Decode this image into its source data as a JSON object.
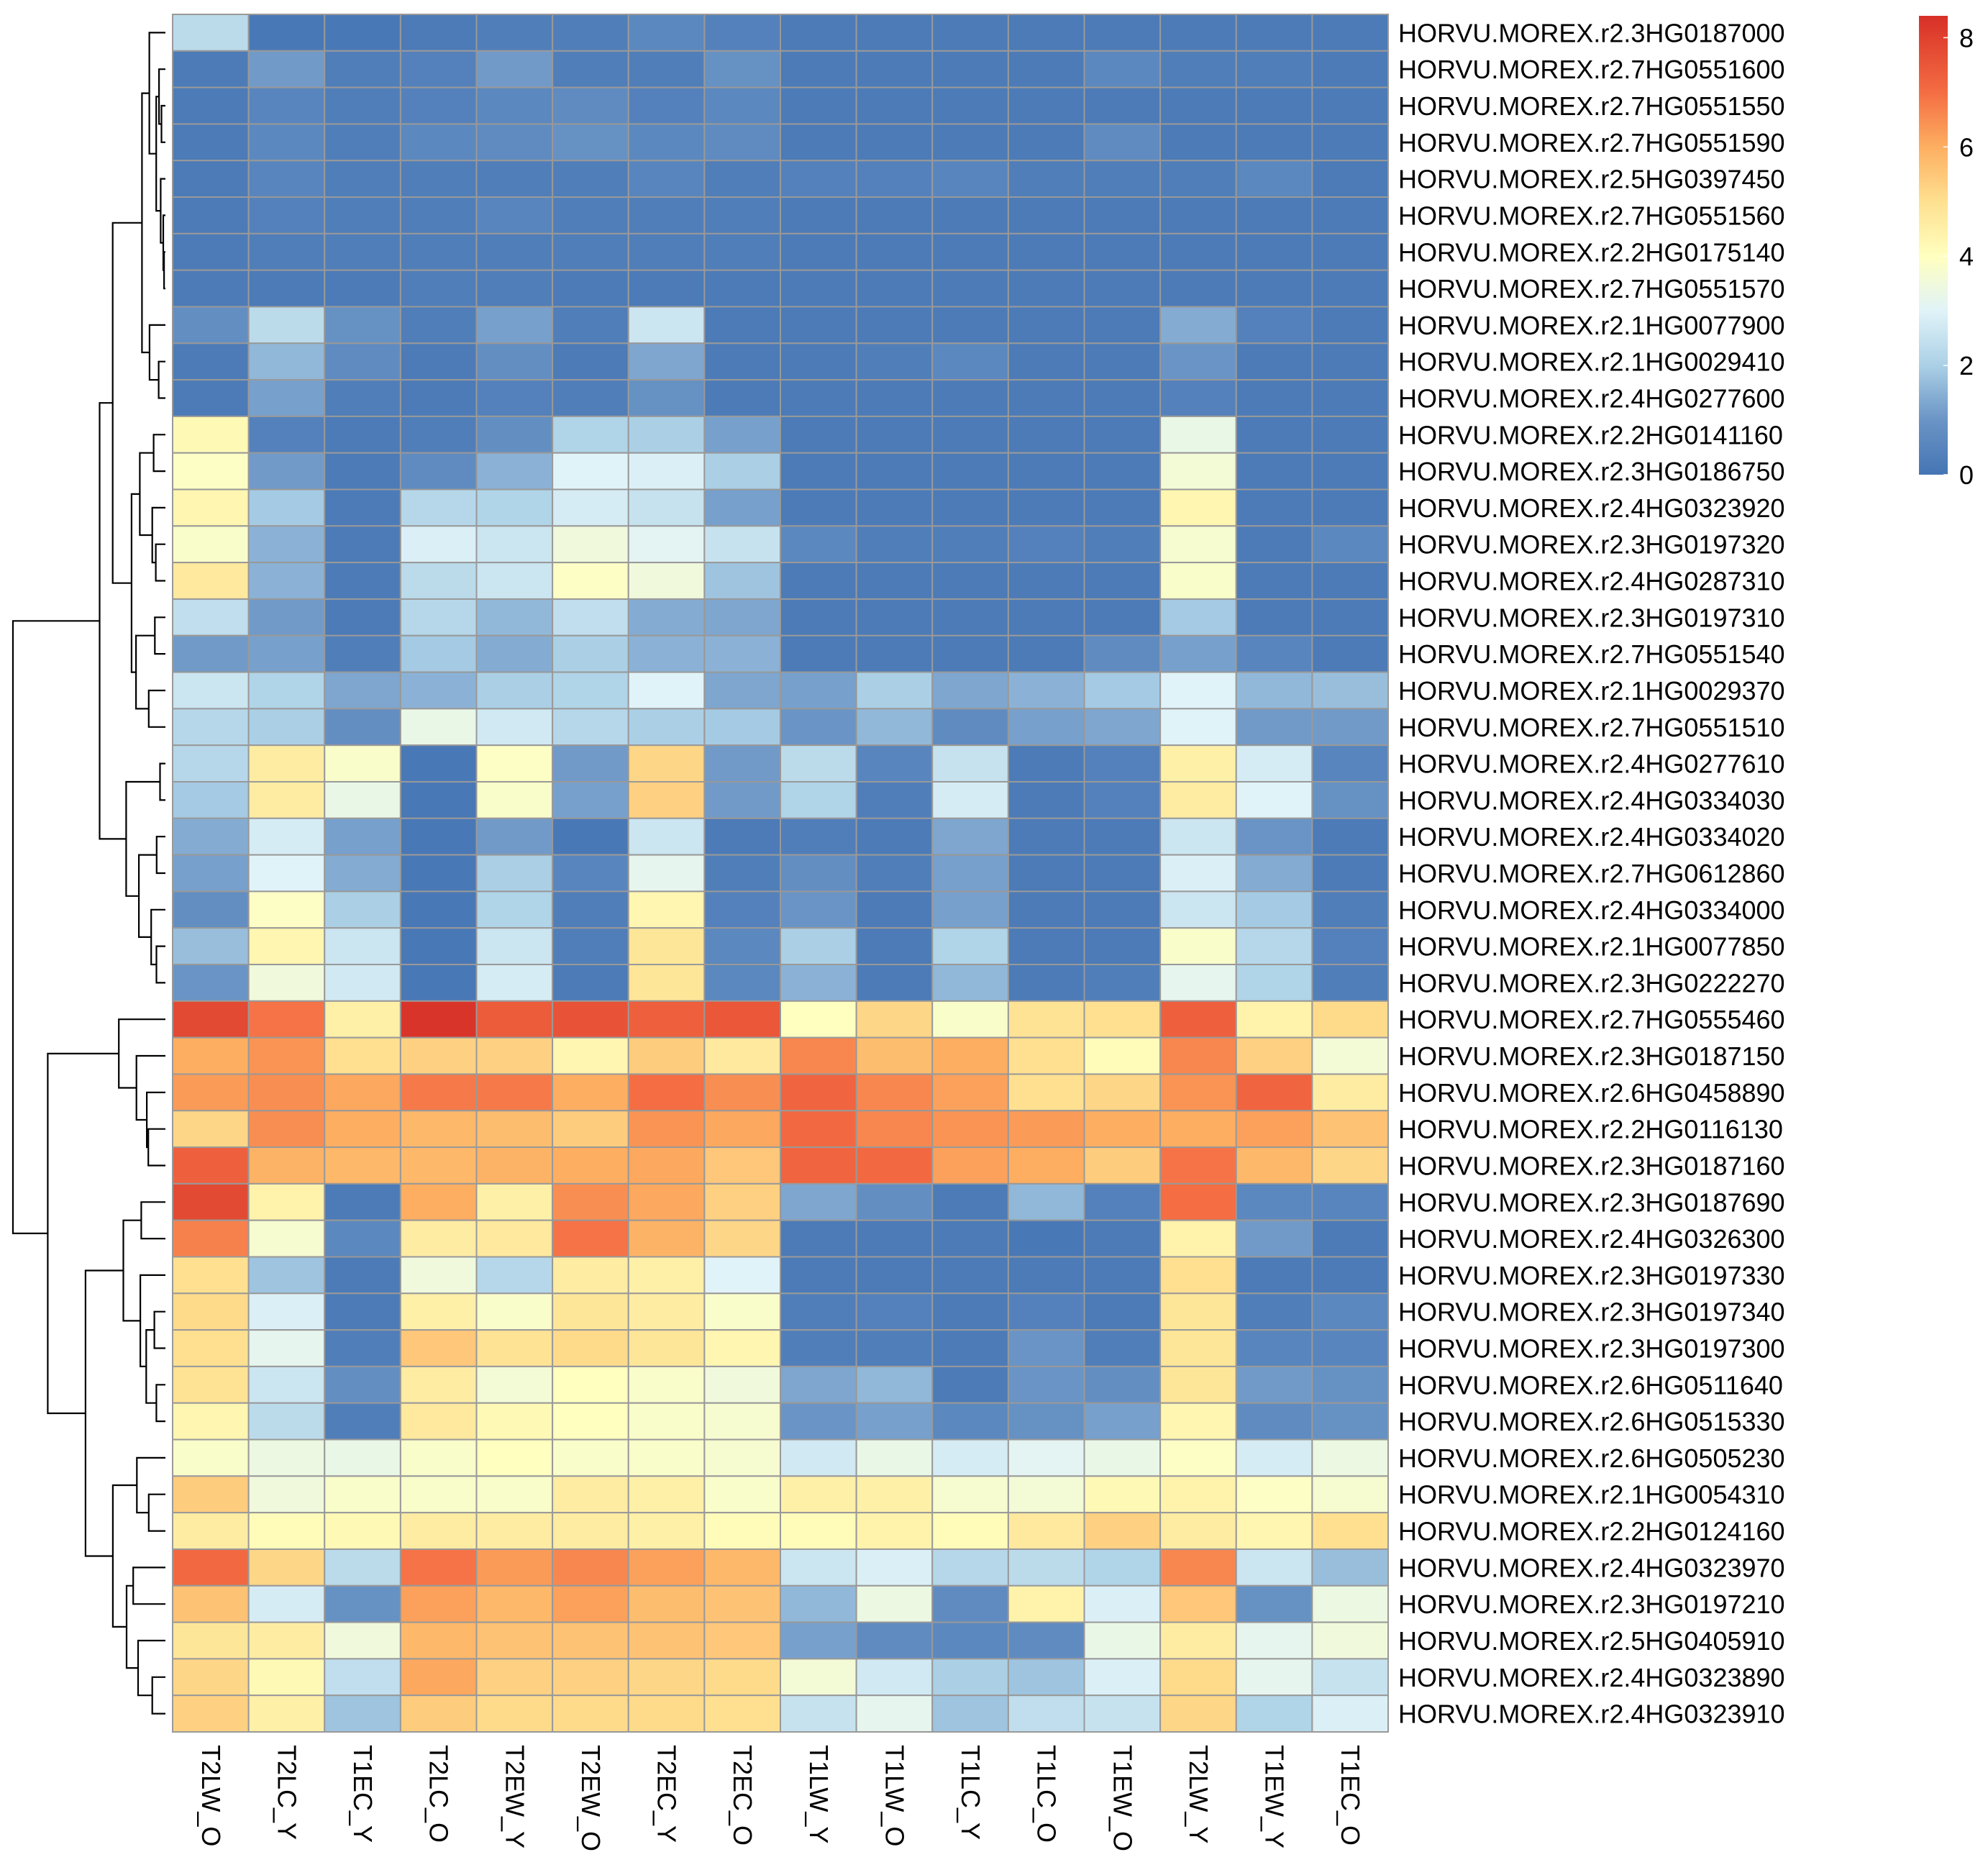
{
  "chart_data": {
    "type": "heatmap",
    "title": "",
    "xlabel": "",
    "ylabel": "",
    "columns": [
      "T2LW_O",
      "T2LC_Y",
      "T1EC_Y",
      "T2LC_O",
      "T2EW_Y",
      "T2EW_O",
      "T2EC_Y",
      "T2EC_O",
      "T1LW_Y",
      "T1LW_O",
      "T1LC_Y",
      "T1LC_O",
      "T1EW_O",
      "T2LW_Y",
      "T1EW_Y",
      "T1EC_O"
    ],
    "rows": [
      "HORVU.MOREX.r2.3HG0187000",
      "HORVU.MOREX.r2.7HG0551600",
      "HORVU.MOREX.r2.7HG0551550",
      "HORVU.MOREX.r2.7HG0551590",
      "HORVU.MOREX.r2.5HG0397450",
      "HORVU.MOREX.r2.7HG0551560",
      "HORVU.MOREX.r2.2HG0175140",
      "HORVU.MOREX.r2.7HG0551570",
      "HORVU.MOREX.r2.1HG0077900",
      "HORVU.MOREX.r2.1HG0029410",
      "HORVU.MOREX.r2.4HG0277600",
      "HORVU.MOREX.r2.2HG0141160",
      "HORVU.MOREX.r2.3HG0186750",
      "HORVU.MOREX.r2.4HG0323920",
      "HORVU.MOREX.r2.3HG0197320",
      "HORVU.MOREX.r2.4HG0287310",
      "HORVU.MOREX.r2.3HG0197310",
      "HORVU.MOREX.r2.7HG0551540",
      "HORVU.MOREX.r2.1HG0029370",
      "HORVU.MOREX.r2.7HG0551510",
      "HORVU.MOREX.r2.4HG0277610",
      "HORVU.MOREX.r2.4HG0334030",
      "HORVU.MOREX.r2.4HG0334020",
      "HORVU.MOREX.r2.7HG0612860",
      "HORVU.MOREX.r2.4HG0334000",
      "HORVU.MOREX.r2.1HG0077850",
      "HORVU.MOREX.r2.3HG0222270",
      "HORVU.MOREX.r2.7HG0555460",
      "HORVU.MOREX.r2.3HG0187150",
      "HORVU.MOREX.r2.6HG0458890",
      "HORVU.MOREX.r2.2HG0116130",
      "HORVU.MOREX.r2.3HG0187160",
      "HORVU.MOREX.r2.3HG0187690",
      "HORVU.MOREX.r2.4HG0326300",
      "HORVU.MOREX.r2.3HG0197330",
      "HORVU.MOREX.r2.3HG0197340",
      "HORVU.MOREX.r2.3HG0197300",
      "HORVU.MOREX.r2.6HG0511640",
      "HORVU.MOREX.r2.6HG0515330",
      "HORVU.MOREX.r2.6HG0505230",
      "HORVU.MOREX.r2.1HG0054310",
      "HORVU.MOREX.r2.2HG0124160",
      "HORVU.MOREX.r2.4HG0323970",
      "HORVU.MOREX.r2.3HG0197210",
      "HORVU.MOREX.r2.5HG0405910",
      "HORVU.MOREX.r2.4HG0323890",
      "HORVU.MOREX.r2.4HG0323910"
    ],
    "values": [
      [
        2.3,
        0.1,
        0.1,
        0.2,
        0.3,
        0.3,
        0.6,
        0.4,
        0.2,
        0.2,
        0.2,
        0.2,
        0.2,
        0.2,
        0.2,
        0.2
      ],
      [
        0.2,
        1.1,
        0.3,
        0.4,
        1.1,
        0.3,
        0.3,
        0.9,
        0.2,
        0.2,
        0.2,
        0.2,
        0.6,
        0.3,
        0.3,
        0.2
      ],
      [
        0.2,
        0.5,
        0.3,
        0.4,
        0.6,
        0.7,
        0.4,
        0.6,
        0.2,
        0.2,
        0.2,
        0.2,
        0.2,
        0.2,
        0.2,
        0.2
      ],
      [
        0.2,
        0.6,
        0.3,
        0.6,
        0.7,
        0.9,
        0.6,
        0.7,
        0.2,
        0.2,
        0.2,
        0.2,
        0.7,
        0.2,
        0.2,
        0.2
      ],
      [
        0.2,
        0.5,
        0.3,
        0.3,
        0.3,
        0.3,
        0.5,
        0.3,
        0.4,
        0.4,
        0.5,
        0.3,
        0.3,
        0.3,
        0.6,
        0.2
      ],
      [
        0.2,
        0.4,
        0.3,
        0.3,
        0.5,
        0.3,
        0.3,
        0.3,
        0.2,
        0.2,
        0.2,
        0.2,
        0.2,
        0.2,
        0.2,
        0.2
      ],
      [
        0.2,
        0.3,
        0.3,
        0.3,
        0.3,
        0.3,
        0.3,
        0.3,
        0.2,
        0.2,
        0.2,
        0.2,
        0.2,
        0.2,
        0.2,
        0.2
      ],
      [
        0.2,
        0.2,
        0.2,
        0.3,
        0.3,
        0.2,
        0.2,
        0.2,
        0.2,
        0.2,
        0.2,
        0.2,
        0.2,
        0.2,
        0.2,
        0.2
      ],
      [
        0.8,
        2.3,
        0.9,
        0.3,
        1.2,
        0.3,
        2.6,
        0.2,
        0.2,
        0.2,
        0.2,
        0.2,
        0.2,
        1.4,
        0.4,
        0.2
      ],
      [
        0.2,
        1.6,
        0.7,
        0.2,
        0.8,
        0.2,
        1.3,
        0.2,
        0.2,
        0.3,
        0.6,
        0.2,
        0.2,
        1.0,
        0.2,
        0.2
      ],
      [
        0.2,
        1.2,
        0.3,
        0.2,
        0.4,
        0.3,
        0.9,
        0.2,
        0.2,
        0.2,
        0.2,
        0.2,
        0.2,
        0.4,
        0.2,
        0.2
      ],
      [
        4.2,
        0.4,
        0.2,
        0.3,
        0.8,
        2.1,
        2.0,
        1.2,
        0.2,
        0.2,
        0.2,
        0.2,
        0.2,
        3.3,
        0.2,
        0.2
      ],
      [
        3.9,
        1.1,
        0.2,
        0.7,
        1.5,
        3.0,
        2.9,
        2.0,
        0.2,
        0.2,
        0.2,
        0.2,
        0.2,
        3.6,
        0.2,
        0.2
      ],
      [
        4.3,
        1.9,
        0.2,
        2.2,
        2.1,
        2.8,
        2.5,
        1.2,
        0.2,
        0.2,
        0.2,
        0.2,
        0.2,
        4.3,
        0.2,
        0.2
      ],
      [
        3.8,
        1.5,
        0.2,
        2.9,
        2.6,
        3.5,
        3.1,
        2.5,
        0.6,
        0.3,
        0.3,
        0.4,
        0.3,
        3.7,
        0.2,
        0.6
      ],
      [
        4.7,
        1.5,
        0.2,
        2.3,
        2.6,
        3.9,
        3.5,
        1.8,
        0.2,
        0.2,
        0.2,
        0.2,
        0.2,
        3.8,
        0.2,
        0.2
      ],
      [
        2.4,
        1.1,
        0.2,
        2.2,
        1.6,
        2.4,
        1.4,
        1.3,
        0.2,
        0.2,
        0.2,
        0.2,
        0.2,
        1.9,
        0.2,
        0.2
      ],
      [
        1.1,
        1.2,
        0.3,
        1.9,
        1.4,
        2.0,
        1.5,
        1.5,
        0.2,
        0.2,
        0.2,
        0.2,
        0.7,
        1.2,
        0.5,
        0.2
      ],
      [
        2.6,
        2.1,
        1.3,
        1.5,
        2.0,
        2.1,
        3.0,
        1.3,
        1.2,
        2.0,
        1.3,
        1.5,
        1.9,
        3.0,
        1.6,
        1.7
      ],
      [
        2.2,
        2.0,
        0.8,
        3.3,
        2.7,
        2.2,
        2.0,
        1.9,
        1.0,
        1.6,
        0.7,
        1.2,
        1.3,
        3.0,
        1.1,
        1.1
      ],
      [
        2.2,
        4.6,
        3.8,
        0.1,
        3.9,
        1.1,
        5.2,
        1.1,
        2.3,
        0.5,
        2.5,
        0.2,
        0.4,
        4.5,
        2.8,
        0.5
      ],
      [
        1.9,
        4.6,
        3.3,
        0.1,
        3.8,
        1.2,
        5.3,
        1.1,
        2.1,
        0.3,
        2.8,
        0.2,
        0.4,
        4.6,
        3.0,
        0.9
      ],
      [
        1.4,
        2.8,
        1.2,
        0.1,
        1.1,
        0.1,
        2.6,
        0.2,
        0.3,
        0.2,
        1.3,
        0.2,
        0.2,
        2.6,
        1.0,
        0.2
      ],
      [
        1.2,
        3.0,
        1.4,
        0.1,
        2.0,
        0.5,
        3.2,
        0.3,
        0.8,
        0.3,
        1.2,
        0.2,
        0.2,
        2.9,
        1.4,
        0.2
      ],
      [
        0.8,
        3.9,
        2.0,
        0.1,
        2.1,
        0.3,
        4.3,
        0.4,
        1.0,
        0.2,
        1.2,
        0.2,
        0.2,
        2.6,
        1.9,
        0.3
      ],
      [
        1.7,
        4.3,
        2.6,
        0.1,
        2.6,
        0.3,
        4.8,
        0.6,
        2.0,
        0.2,
        2.1,
        0.2,
        0.2,
        3.8,
        2.2,
        0.4
      ],
      [
        1.0,
        3.5,
        2.7,
        0.1,
        2.8,
        0.2,
        4.8,
        0.6,
        1.5,
        0.2,
        1.6,
        0.2,
        0.3,
        3.2,
        2.1,
        0.3
      ],
      [
        7.8,
        6.9,
        4.5,
        8.3,
        7.4,
        7.6,
        7.3,
        7.5,
        4.0,
        5.2,
        3.8,
        4.9,
        5.0,
        7.3,
        4.4,
        5.1
      ],
      [
        6.0,
        6.4,
        5.0,
        5.3,
        5.3,
        4.3,
        5.4,
        4.7,
        6.6,
        5.7,
        6.0,
        5.0,
        4.1,
        6.6,
        5.3,
        3.6
      ],
      [
        6.3,
        6.5,
        6.1,
        6.8,
        6.8,
        6.0,
        7.0,
        6.5,
        7.2,
        6.6,
        6.2,
        5.0,
        5.2,
        6.4,
        7.2,
        4.6
      ],
      [
        5.2,
        6.5,
        6.0,
        5.8,
        5.7,
        5.4,
        6.4,
        6.1,
        7.1,
        6.6,
        6.4,
        6.3,
        6.0,
        6.0,
        6.2,
        5.6
      ],
      [
        7.3,
        5.9,
        5.8,
        5.8,
        5.9,
        6.0,
        6.1,
        5.5,
        7.2,
        7.1,
        6.2,
        6.0,
        5.4,
        6.9,
        5.8,
        5.2
      ],
      [
        7.8,
        4.4,
        0.2,
        6.0,
        4.5,
        6.5,
        6.1,
        5.3,
        1.3,
        0.8,
        0.2,
        1.6,
        0.4,
        7.0,
        0.6,
        0.5
      ],
      [
        6.7,
        3.7,
        0.6,
        4.6,
        4.7,
        6.9,
        5.9,
        5.2,
        0.2,
        0.2,
        0.2,
        0.1,
        0.2,
        4.4,
        1.1,
        0.2
      ],
      [
        5.0,
        1.8,
        0.2,
        3.5,
        2.2,
        4.6,
        4.5,
        3.0,
        0.2,
        0.2,
        0.2,
        0.2,
        0.2,
        5.0,
        0.2,
        0.2
      ],
      [
        5.1,
        2.9,
        0.2,
        4.5,
        3.8,
        4.8,
        4.6,
        3.8,
        0.3,
        0.4,
        0.2,
        0.4,
        0.2,
        4.8,
        0.3,
        0.6
      ],
      [
        5.0,
        3.2,
        0.3,
        5.5,
        4.9,
        5.1,
        4.8,
        4.3,
        0.3,
        0.3,
        0.2,
        1.0,
        0.3,
        4.8,
        0.5,
        0.5
      ],
      [
        4.9,
        2.6,
        0.8,
        4.6,
        3.6,
        4.0,
        3.8,
        3.5,
        1.3,
        1.6,
        0.2,
        1.0,
        0.8,
        4.8,
        1.1,
        0.9
      ],
      [
        4.3,
        2.3,
        0.3,
        4.7,
        4.2,
        4.0,
        3.8,
        3.7,
        1.0,
        1.2,
        0.6,
        0.9,
        1.2,
        4.3,
        0.7,
        0.9
      ],
      [
        3.8,
        3.4,
        3.3,
        3.8,
        4.0,
        3.8,
        3.8,
        3.7,
        2.7,
        3.3,
        2.8,
        3.1,
        3.3,
        3.9,
        2.8,
        3.4
      ],
      [
        5.4,
        3.5,
        3.8,
        3.8,
        3.8,
        4.6,
        4.5,
        3.8,
        4.5,
        4.5,
        3.7,
        3.6,
        4.2,
        4.4,
        3.9,
        3.7
      ],
      [
        4.6,
        4.1,
        4.2,
        4.6,
        4.6,
        4.6,
        4.5,
        4.1,
        4.1,
        4.4,
        4.1,
        4.7,
        5.3,
        4.6,
        4.3,
        5.0
      ],
      [
        7.1,
        5.2,
        2.3,
        6.9,
        6.3,
        6.6,
        6.2,
        5.8,
        2.6,
        2.9,
        2.2,
        2.3,
        2.1,
        6.6,
        2.6,
        1.7
      ],
      [
        5.6,
        2.8,
        0.9,
        6.2,
        5.8,
        6.2,
        5.7,
        5.6,
        1.6,
        3.4,
        0.7,
        4.4,
        2.9,
        5.5,
        0.9,
        3.4
      ],
      [
        4.8,
        4.6,
        3.5,
        5.8,
        5.6,
        5.6,
        5.6,
        5.5,
        1.2,
        0.7,
        0.6,
        0.7,
        3.3,
        4.6,
        3.2,
        3.5
      ],
      [
        5.2,
        4.2,
        2.4,
        6.1,
        5.3,
        5.3,
        5.2,
        5.1,
        3.6,
        2.7,
        2.0,
        1.8,
        2.9,
        5.1,
        3.2,
        2.5
      ],
      [
        5.3,
        4.5,
        1.8,
        5.4,
        5.1,
        5.1,
        5.1,
        5.0,
        2.5,
        3.2,
        1.8,
        2.4,
        2.5,
        5.2,
        2.1,
        2.9
      ]
    ],
    "color_scale": {
      "min": 0,
      "max": 8.4,
      "stops": [
        [
          0,
          "#4575b4"
        ],
        [
          1,
          "#6a94c5"
        ],
        [
          2,
          "#abd0e6"
        ],
        [
          3,
          "#e0f3f8"
        ],
        [
          4,
          "#ffffbf"
        ],
        [
          5,
          "#fee090"
        ],
        [
          6,
          "#fdae61"
        ],
        [
          7,
          "#f46d43"
        ],
        [
          8.4,
          "#d73027"
        ]
      ],
      "ticks": [
        0,
        2,
        4,
        6,
        8
      ]
    },
    "grid_color": "#999999",
    "legend_position": "top-right"
  }
}
